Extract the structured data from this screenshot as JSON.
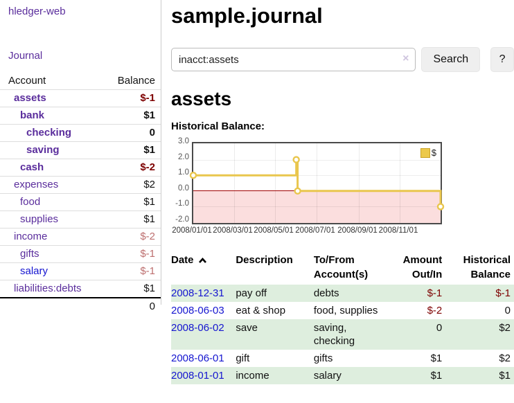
{
  "sidebar": {
    "brand": "hledger-web",
    "journal_link": "Journal",
    "accounts": {
      "header_account": "Account",
      "header_balance": "Balance",
      "rows": [
        {
          "name": "assets",
          "balance": "$-1"
        },
        {
          "name": "bank",
          "balance": "$1"
        },
        {
          "name": "checking",
          "balance": "0"
        },
        {
          "name": "saving",
          "balance": "$1"
        },
        {
          "name": "cash",
          "balance": "$-2"
        },
        {
          "name": "expenses",
          "balance": "$2"
        },
        {
          "name": "food",
          "balance": "$1"
        },
        {
          "name": "supplies",
          "balance": "$1"
        },
        {
          "name": "income",
          "balance": "$-2"
        },
        {
          "name": "gifts",
          "balance": "$-1"
        },
        {
          "name": "salary",
          "balance": "$-1"
        },
        {
          "name": "liabilities:debts",
          "balance": "$1"
        }
      ],
      "total": "0"
    }
  },
  "main": {
    "title": "sample.journal",
    "search": {
      "query": "inacct:assets",
      "clear_icon": "×",
      "search_button": "Search",
      "help_button": "?"
    },
    "heading": "assets",
    "chart_title": "Historical Balance:",
    "register": {
      "headers": {
        "date": "Date",
        "description": "Description",
        "tofrom": "To/From Account(s)",
        "amount": "Amount Out/In",
        "historical": "Historical Balance"
      },
      "rows": [
        {
          "date": "2008-12-31",
          "description": "pay off",
          "accounts": "debts",
          "amount": "$-1",
          "balance": "$-1"
        },
        {
          "date": "2008-06-03",
          "description": "eat & shop",
          "accounts": "food, supplies",
          "amount": "$-2",
          "balance": "0"
        },
        {
          "date": "2008-06-02",
          "description": "save",
          "accounts": "saving, checking",
          "amount": "0",
          "balance": "$2"
        },
        {
          "date": "2008-06-01",
          "description": "gift",
          "accounts": "gifts",
          "amount": "$1",
          "balance": "$2"
        },
        {
          "date": "2008-01-01",
          "description": "income",
          "accounts": "salary",
          "amount": "$1",
          "balance": "$1"
        }
      ]
    }
  },
  "chart_data": {
    "type": "line",
    "title": "Historical Balance",
    "step": true,
    "series": [
      {
        "name": "$",
        "points": [
          [
            "2008-01-01",
            1
          ],
          [
            "2008-06-01",
            2
          ],
          [
            "2008-06-03",
            0
          ],
          [
            "2008-12-31",
            -1
          ]
        ]
      }
    ],
    "x_range": [
      "2008-01-01",
      "2008-12-31"
    ],
    "ylim": [
      -2,
      3
    ],
    "yticks": [
      "3.0",
      "2.0",
      "1.0",
      "0.0",
      "-1.0",
      "-2.0"
    ],
    "xticks": [
      "2008/01/01",
      "2008/03/01",
      "2008/05/01",
      "2008/07/01",
      "2008/09/01",
      "2008/11/01"
    ],
    "legend": [
      {
        "label": "$",
        "color": "#ecc94b"
      }
    ],
    "legend_position": "top-right",
    "grid": true,
    "line_color": "#e9c64d",
    "negative_area_color": "#fbdede",
    "zero_line_color": "#a00000"
  }
}
